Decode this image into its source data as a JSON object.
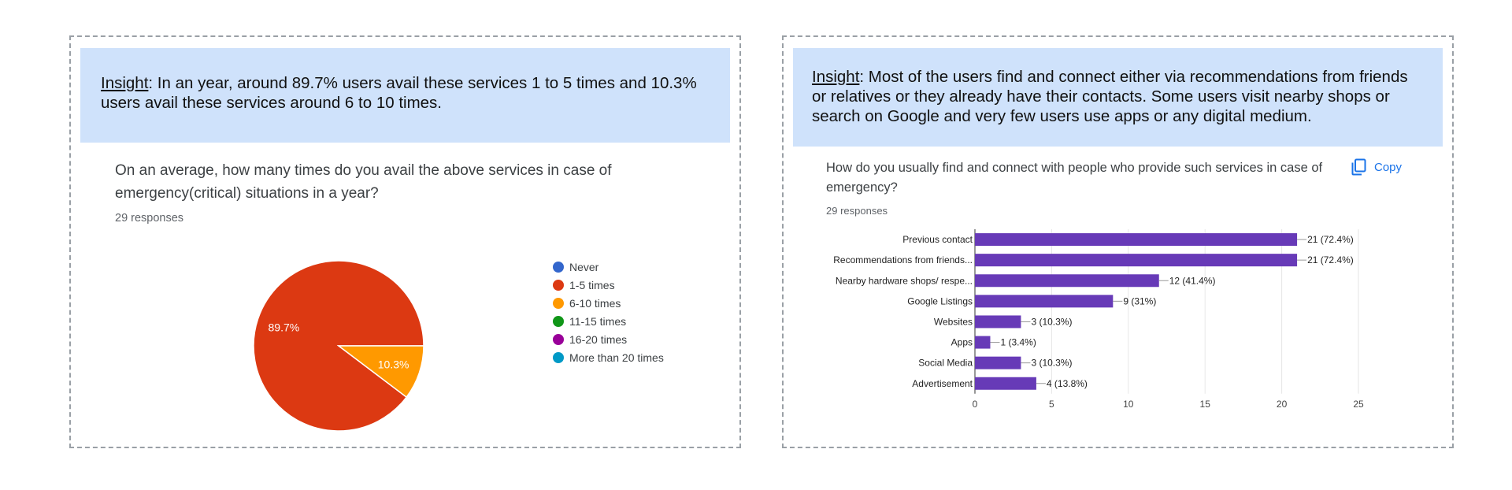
{
  "left": {
    "insight_label": "Insight",
    "insight_text": ": In an year, around 89.7% users avail these services 1 to 5 times and 10.3% users avail these services around 6 to 10 times.",
    "question": "On an average, how many times do you avail the above services in case of emergency(critical) situations in a year?",
    "responses": "29 responses"
  },
  "right": {
    "insight_label": "Insight",
    "insight_text": ": Most of the users find and connect either via recommendations from friends or relatives or they already have their contacts. Some users visit nearby shops or search on Google and very few users use apps or any digital medium.",
    "question": "How do you usually find and connect with people who provide such services in case of emergency?",
    "responses": "29 responses",
    "copy_label": "Copy"
  },
  "chart_data": [
    {
      "type": "pie",
      "title": "",
      "categories": [
        "Never",
        "1-5 times",
        "6-10 times",
        "11-15 times",
        "16-20 times",
        "More than 20 times"
      ],
      "values": [
        0,
        89.7,
        10.3,
        0,
        0,
        0
      ],
      "slice_labels": [
        "",
        "89.7%",
        "10.3%",
        "",
        "",
        ""
      ],
      "colors": [
        "#3366cc",
        "#dc3912",
        "#ff9900",
        "#109618",
        "#990099",
        "#0099c6"
      ],
      "legend_position": "right"
    },
    {
      "type": "bar",
      "orientation": "horizontal",
      "title": "",
      "categories": [
        "Previous contact",
        "Recommendations from friends...",
        "Nearby hardware shops/ respe...",
        "Google Listings",
        "Websites",
        "Apps",
        "Social Media",
        "Advertisement"
      ],
      "values": [
        21,
        21,
        12,
        9,
        3,
        1,
        3,
        4
      ],
      "data_labels": [
        "21 (72.4%)",
        "21 (72.4%)",
        "12 (41.4%)",
        "9 (31%)",
        "3 (10.3%)",
        "1 (3.4%)",
        "3 (10.3%)",
        "4 (13.8%)"
      ],
      "xlim": [
        0,
        25
      ],
      "xticks": [
        0,
        5,
        10,
        15,
        20,
        25
      ],
      "color": "#673ab7",
      "grid": true
    }
  ]
}
